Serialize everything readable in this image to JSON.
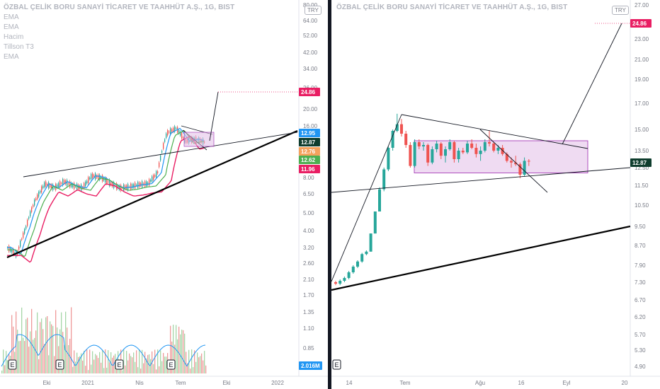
{
  "left": {
    "header": {
      "title": "ÖZBAL ÇELİK BORU SANAYİ TİCARET VE TAAHHÜT A.Ş., 1G, BIST",
      "indicators": [
        "EMA",
        "EMA",
        "Hacim",
        "Tillson T3",
        "EMA"
      ]
    },
    "currency_badge": "TRY",
    "price_axis_ticks": [
      "80.00",
      "64.00",
      "52.00",
      "42.00",
      "34.00",
      "26.00",
      "20.00",
      "16.00",
      "8.00",
      "6.50",
      "5.00",
      "4.00",
      "3.20",
      "2.60",
      "2.10",
      "1.70",
      "1.35",
      "1.10",
      "0.85",
      "0.60"
    ],
    "price_badges": [
      {
        "label": "24.86",
        "color": "#e91e63"
      },
      {
        "label": "12.95",
        "color": "#2196f3"
      },
      {
        "label": "12.87",
        "color": "#0f3d2e"
      },
      {
        "label": "12.76",
        "color": "#f5a25d"
      },
      {
        "label": "12.62",
        "color": "#4caf50"
      },
      {
        "label": "11.96",
        "color": "#e91e63"
      }
    ],
    "volume_badge": "2.016M",
    "time_axis_labels": [
      "Eki",
      "2021",
      "Nis",
      "Tem",
      "Eki",
      "2022"
    ],
    "event_markers": [
      "E",
      "E",
      "E",
      "E"
    ]
  },
  "right": {
    "header": {
      "title": "ÖZBAL ÇELİK BORU SANAYİ TİCARET VE TAAHHÜT A.Ş., 1G, BIST"
    },
    "currency_badge": "TRY",
    "price_axis_ticks": [
      "27.00",
      "25.00",
      "23.00",
      "21.00",
      "19.00",
      "17.00",
      "15.00",
      "13.50",
      "12.50",
      "11.50",
      "10.50",
      "9.50",
      "8.70",
      "7.90",
      "7.30",
      "6.70",
      "6.20",
      "5.70",
      "5.30",
      "4.90"
    ],
    "price_badges": [
      {
        "label": "24.86",
        "color": "#e91e63"
      },
      {
        "label": "12.87",
        "color": "#0f3d2e"
      }
    ],
    "time_axis_labels": [
      "14",
      "Tem",
      "Ağu",
      "16",
      "Eyl",
      "20"
    ],
    "event_markers": [
      "E"
    ]
  },
  "colors": {
    "up": "#26a69a",
    "down": "#ef5350",
    "ema_fast": "#2196f3",
    "ema_slow": "#e91e63",
    "t3": "#4caf50",
    "rectangle_fill": "#e1bee7",
    "rectangle_border": "#9c27b0",
    "target_line": "#e91e63"
  },
  "chart_data": [
    {
      "type": "candlestick",
      "panel": "left",
      "title": "ÖZBAL ÇELİK BORU SANAYİ TİCARET VE TAAHHÜT A.Ş., 1G, BIST",
      "scale": "log",
      "x_labels": [
        "Eki",
        "2021",
        "Nis",
        "Tem",
        "Eki",
        "2022"
      ],
      "y_ticks": [
        80,
        64,
        52,
        42,
        34,
        26,
        20,
        16,
        8,
        6.5,
        5,
        4,
        3.2,
        2.6,
        2.1,
        1.7,
        1.35,
        1.1,
        0.85,
        0.6
      ],
      "last_close": 12.87,
      "target": 24.86,
      "indicator_values": {
        "EMA_fast": 12.95,
        "EMA": 12.76,
        "Tillson_T3": 12.62,
        "EMA_slow": 11.96
      },
      "volume_last": "2.016M",
      "approx_close_path": [
        3.2,
        2.9,
        4.2,
        6.0,
        7.4,
        7.0,
        7.6,
        7.2,
        7.0,
        8.2,
        8.0,
        7.4,
        7.0,
        7.1,
        7.3,
        7.4,
        8.5,
        14.5,
        15.5,
        13.0,
        13.4,
        12.87
      ]
    },
    {
      "type": "candlestick",
      "panel": "right",
      "title": "ÖZBAL ÇELİK BORU SANAYİ TİCARET VE TAAHHÜT A.Ş., 1G, BIST",
      "x_labels": [
        "14",
        "Tem",
        "Ağu",
        "16",
        "Eyl",
        "20"
      ],
      "y_ticks": [
        27,
        25,
        23,
        21,
        19,
        17,
        15,
        13.5,
        12.5,
        11.5,
        10.5,
        9.5,
        8.7,
        7.9,
        7.3,
        6.7,
        6.2,
        5.7,
        5.3,
        4.9
      ],
      "last_close": 12.87,
      "target": 24.86,
      "range_box": {
        "high": 14.2,
        "low": 12.2
      },
      "candles": [
        [
          7.3,
          7.35,
          7.2,
          7.25
        ],
        [
          7.25,
          7.4,
          7.2,
          7.35
        ],
        [
          7.35,
          7.5,
          7.3,
          7.45
        ],
        [
          7.45,
          7.7,
          7.4,
          7.65
        ],
        [
          7.65,
          7.9,
          7.6,
          7.85
        ],
        [
          7.85,
          8.1,
          7.8,
          8.05
        ],
        [
          8.05,
          8.4,
          8.0,
          8.35
        ],
        [
          8.35,
          8.5,
          8.3,
          8.45
        ],
        [
          8.45,
          9.2,
          8.45,
          9.2
        ],
        [
          9.2,
          10.2,
          9.2,
          10.2
        ],
        [
          10.2,
          11.4,
          10.2,
          11.3
        ],
        [
          11.3,
          12.5,
          11.2,
          12.4
        ],
        [
          12.4,
          13.8,
          12.3,
          13.7
        ],
        [
          13.7,
          15.0,
          13.5,
          14.9
        ],
        [
          14.9,
          16.2,
          14.8,
          15.4
        ],
        [
          15.4,
          15.8,
          14.5,
          14.7
        ],
        [
          14.7,
          14.9,
          13.7,
          13.9
        ],
        [
          13.9,
          14.1,
          12.5,
          12.6
        ],
        [
          12.6,
          14.3,
          12.5,
          14.1
        ],
        [
          14.1,
          14.3,
          13.6,
          13.8
        ],
        [
          13.8,
          14.1,
          13.5,
          13.9
        ],
        [
          13.9,
          14.0,
          12.6,
          12.8
        ],
        [
          12.8,
          13.8,
          12.7,
          13.6
        ],
        [
          13.6,
          14.2,
          13.4,
          14.0
        ],
        [
          14.0,
          14.1,
          13.0,
          13.2
        ],
        [
          13.2,
          13.8,
          12.8,
          13.6
        ],
        [
          13.6,
          14.3,
          13.5,
          14.1
        ],
        [
          14.1,
          14.2,
          12.8,
          13.0
        ],
        [
          13.0,
          13.7,
          12.8,
          13.5
        ],
        [
          13.5,
          13.7,
          13.3,
          13.4
        ],
        [
          13.4,
          14.2,
          13.3,
          14.0
        ],
        [
          14.0,
          14.3,
          13.6,
          13.7
        ],
        [
          13.7,
          14.0,
          13.1,
          13.3
        ],
        [
          13.3,
          13.8,
          12.9,
          13.5
        ],
        [
          13.5,
          14.3,
          13.4,
          14.1
        ],
        [
          14.1,
          14.9,
          13.8,
          14.0
        ],
        [
          14.0,
          14.1,
          13.4,
          13.5
        ],
        [
          13.5,
          13.9,
          13.3,
          13.7
        ],
        [
          13.7,
          13.9,
          13.2,
          13.3
        ],
        [
          13.3,
          13.4,
          12.8,
          12.9
        ],
        [
          12.9,
          13.1,
          12.5,
          12.8
        ],
        [
          12.8,
          13.2,
          12.6,
          12.7
        ],
        [
          12.7,
          12.8,
          11.9,
          12.1
        ],
        [
          12.1,
          13.1,
          12.0,
          12.9
        ],
        [
          12.9,
          13.0,
          12.6,
          12.87
        ]
      ]
    }
  ]
}
